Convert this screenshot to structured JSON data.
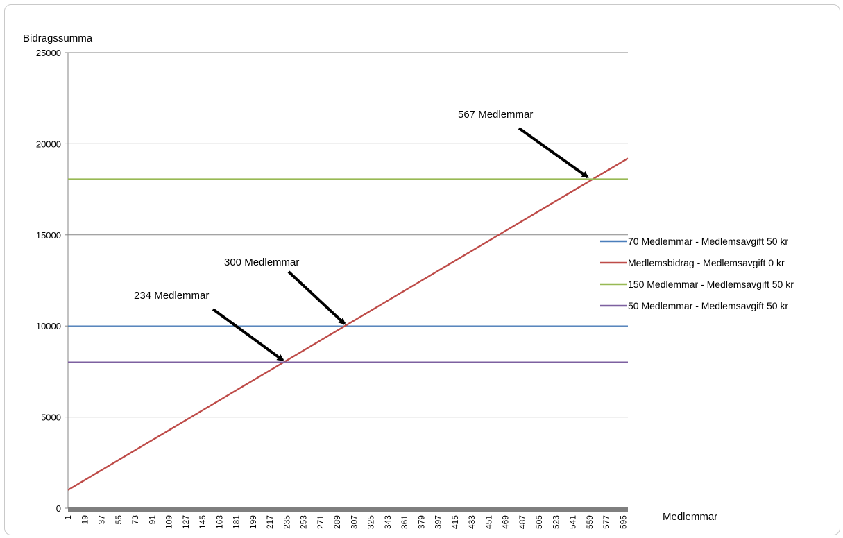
{
  "chart_data": {
    "type": "line",
    "title": "",
    "ylabel": "Bidragssumma",
    "xlabel": "Medlemmar",
    "ylim": [
      0,
      25000
    ],
    "yticks": [
      0,
      5000,
      10000,
      15000,
      20000,
      25000
    ],
    "xlim": [
      1,
      600
    ],
    "xticks": [
      1,
      19,
      37,
      55,
      73,
      91,
      109,
      127,
      145,
      163,
      181,
      199,
      217,
      235,
      253,
      271,
      289,
      307,
      325,
      343,
      361,
      379,
      397,
      415,
      433,
      451,
      469,
      487,
      505,
      523,
      541,
      559,
      577,
      595
    ],
    "grid": true,
    "legend_position": "right",
    "series": [
      {
        "name": "70 Medlemmar - Medlemsavgift 50 kr",
        "color": "#4a7ebb",
        "x": [
          1,
          600
        ],
        "y": [
          10000,
          10000
        ]
      },
      {
        "name": "Medlemsbidrag - Medlemsavgift 0 kr",
        "color": "#be4b48",
        "x": [
          1,
          600
        ],
        "y": [
          1000,
          19200
        ]
      },
      {
        "name": "150 Medlemmar - Medlemsavgift 50 kr",
        "color": "#98b954",
        "x": [
          1,
          600
        ],
        "y": [
          18050,
          18050
        ]
      },
      {
        "name": "50 Medlemmar - Medlemsavgift 50 kr",
        "color": "#7d60a0",
        "x": [
          1,
          600
        ],
        "y": [
          8000,
          8000
        ]
      }
    ],
    "annotations": [
      {
        "text": "567 Medlemmar",
        "x": 557,
        "y": 18050
      },
      {
        "text": "300 Medlemmar",
        "x": 297,
        "y": 10000
      },
      {
        "text": "234 Medlemmar",
        "x": 231,
        "y": 8000
      }
    ]
  }
}
